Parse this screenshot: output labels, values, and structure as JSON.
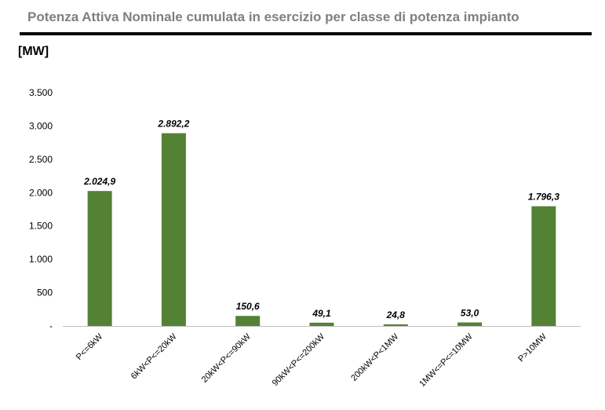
{
  "chart_data": {
    "type": "bar",
    "title": "Potenza Attiva Nominale cumulata in esercizio per classe di potenza impianto",
    "ylabel": "[MW]",
    "xlabel": "",
    "categories": [
      "P<=6kW",
      "6kW<P<=20kW",
      "20kW<P<=90kW",
      "90kW<P<=200kW",
      "200kW<P<1MW",
      "1MW<=P<=10MW",
      "P>10MW"
    ],
    "values": [
      2024.9,
      2892.2,
      150.6,
      49.1,
      24.8,
      53.0,
      1796.3
    ],
    "data_labels": [
      "2.024,9",
      "2.892,2",
      "150,6",
      "49,1",
      "24,8",
      "53,0",
      "1.796,3"
    ],
    "ylim": [
      0,
      3500
    ],
    "yticks": [
      {
        "value": 0,
        "label": "-"
      },
      {
        "value": 500,
        "label": "500"
      },
      {
        "value": 1000,
        "label": "1.000"
      },
      {
        "value": 1500,
        "label": "1.500"
      },
      {
        "value": 2000,
        "label": "2.000"
      },
      {
        "value": 2500,
        "label": "2.500"
      },
      {
        "value": 3000,
        "label": "3.000"
      },
      {
        "value": 3500,
        "label": "3.500"
      }
    ],
    "grid": false,
    "legend": "none",
    "bar_color": "#548235"
  }
}
